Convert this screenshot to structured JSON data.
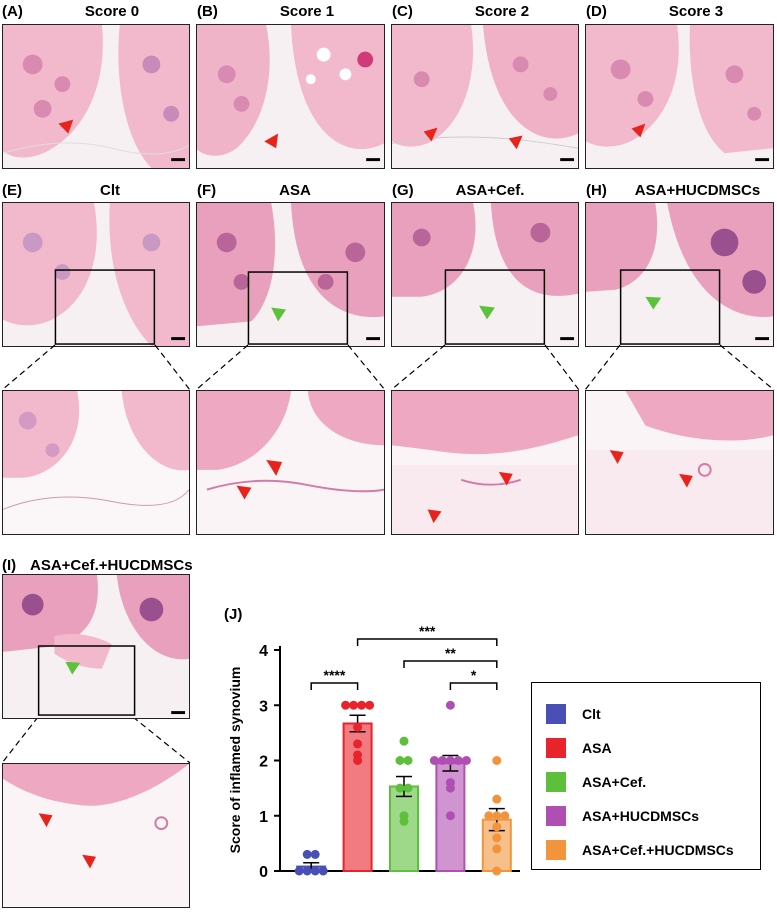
{
  "panels": {
    "A": {
      "label": "(A)",
      "title": "Score 0"
    },
    "B": {
      "label": "(B)",
      "title": "Score 1"
    },
    "C": {
      "label": "(C)",
      "title": "Score 2"
    },
    "D": {
      "label": "(D)",
      "title": "Score 3"
    },
    "E": {
      "label": "(E)",
      "title": "Clt"
    },
    "F": {
      "label": "(F)",
      "title": "ASA"
    },
    "G": {
      "label": "(G)",
      "title": "ASA+Cef."
    },
    "H": {
      "label": "(H)",
      "title": "ASA+HUCDMSCs"
    },
    "I": {
      "label": "(I)",
      "title": "ASA+Cef.+HUCDMSCs"
    },
    "J": {
      "label": "(J)"
    }
  },
  "colors": {
    "tissue": "#f2b8cc",
    "tissue_dark": "#d9689a",
    "marrow": "#b9659a",
    "arrow_red": "#e8231c",
    "arrow_green": "#5cc23a"
  },
  "chart_data": {
    "type": "bar",
    "ylabel": "Score of inflamed synovium",
    "ylim": [
      0,
      4
    ],
    "yticks": [
      0,
      1,
      2,
      3,
      4
    ],
    "categories": [
      "Clt",
      "ASA",
      "ASA+Cef.",
      "ASA+HUCDMSCs",
      "ASA+Cef.+HUCDMSCs"
    ],
    "series": [
      {
        "name": "Clt",
        "color": "#4a4fb5",
        "value": 0.08,
        "sem": 0.07,
        "points": [
          0,
          0,
          0,
          0,
          0.3,
          0.3
        ]
      },
      {
        "name": "ASA",
        "color": "#e8232b",
        "value": 2.67,
        "sem": 0.15,
        "points": [
          3,
          3,
          3,
          3,
          2.6,
          2.3,
          2,
          2.1
        ]
      },
      {
        "name": "ASA+Cef.",
        "color": "#5dbf3b",
        "value": 1.53,
        "sem": 0.18,
        "points": [
          2.35,
          2,
          2,
          1.5,
          1.5,
          1,
          0.9
        ]
      },
      {
        "name": "ASA+HUCDMSCs",
        "color": "#b04fb3",
        "value": 1.95,
        "sem": 0.14,
        "points": [
          3,
          2,
          2,
          2,
          2,
          2,
          1.6,
          1.5,
          1
        ]
      },
      {
        "name": "ASA+Cef.+HUCDMSCs",
        "color": "#f2943b",
        "value": 0.93,
        "sem": 0.2,
        "points": [
          2,
          1.3,
          1,
          1,
          1,
          0.8,
          0.6,
          0.4,
          0
        ]
      }
    ],
    "significance": [
      {
        "from": 0,
        "to": 1,
        "label": "****"
      },
      {
        "from": 1,
        "to": 4,
        "label": "***"
      },
      {
        "from": 2,
        "to": 4,
        "label": "**"
      },
      {
        "from": 3,
        "to": 4,
        "label": "*"
      }
    ]
  }
}
